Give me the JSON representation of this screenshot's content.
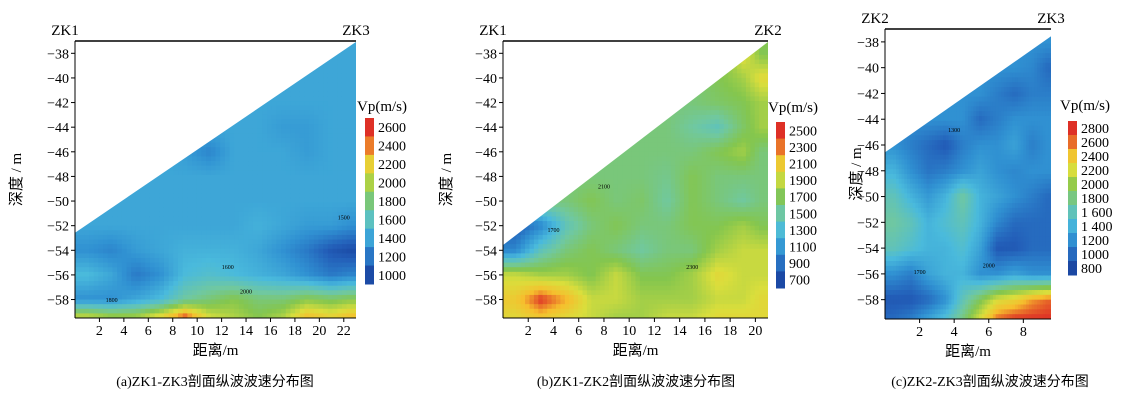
{
  "charts": [
    {
      "id": "a",
      "label_left": "ZK1",
      "label_right": "ZK3",
      "caption": "(a)ZK1-ZK3剖面纵波波速分布图",
      "ylabel": "深度 / m",
      "xlabel": "距离/m",
      "legend_title": "Vp(m/s)",
      "colorbar_ticks": [
        "2600",
        "2400",
        "2200",
        "2000",
        "1800",
        "1600",
        "1400",
        "1200",
        "1000"
      ]
    },
    {
      "id": "b",
      "label_left": "ZK1",
      "label_right": "ZK2",
      "caption": "(b)ZK1-ZK2剖面纵波波速分布图",
      "ylabel": "深度 / m",
      "xlabel": "距离/m",
      "legend_title": "Vp(m/s)",
      "colorbar_ticks": [
        "2500",
        "2300",
        "2100",
        "1900",
        "1700",
        "1500",
        "1300",
        "1100",
        "900",
        "700"
      ]
    },
    {
      "id": "c",
      "label_left": "ZK2",
      "label_right": "ZK3",
      "caption": "(c)ZK2-ZK3剖面纵波波速分布图",
      "ylabel": "深度 / m",
      "xlabel": "距离/m",
      "legend_title": "Vp(m/s)",
      "colorbar_ticks": [
        "2800",
        "2600",
        "2400",
        "2200",
        "2000",
        "1800",
        "1 600",
        "1 400",
        "1200",
        "1000",
        "800"
      ]
    }
  ],
  "chart_data": [
    {
      "type": "heatmap",
      "title": "(a)ZK1-ZK3剖面纵波波速分布图",
      "xlabel": "距离/m",
      "ylabel": "深度 / m",
      "xlim": [
        0,
        23
      ],
      "ylim": [
        -59.5,
        -37
      ],
      "x_ticks": [
        2,
        4,
        6,
        8,
        10,
        12,
        14,
        16,
        18,
        20,
        22
      ],
      "y_ticks": [
        -38,
        -40,
        -42,
        -44,
        -46,
        -48,
        -50,
        -52,
        -54,
        -56,
        -58
      ],
      "colorbar": {
        "title": "Vp(m/s)",
        "min": 1000,
        "max": 2600,
        "step": 200
      },
      "top_boundary": {
        "x": [
          0,
          23
        ],
        "y": [
          -52.5,
          -37
        ]
      },
      "rows_depth": [
        -38,
        -40,
        -42,
        -44,
        -46,
        -48,
        -50,
        -52,
        -54,
        -56,
        -58,
        -59.5
      ],
      "cols_x": [
        1,
        3,
        5,
        7,
        9,
        11,
        13,
        15,
        17,
        19,
        21,
        22.5
      ],
      "values": [
        [
          1500,
          1500,
          1500,
          1500,
          1500,
          1500,
          1500,
          1500,
          1500,
          1500,
          1500,
          1500
        ],
        [
          1500,
          1500,
          1500,
          1500,
          1500,
          1500,
          1500,
          1500,
          1500,
          1500,
          1500,
          1500
        ],
        [
          1500,
          1500,
          1500,
          1500,
          1500,
          1500,
          1500,
          1500,
          1500,
          1500,
          1500,
          1500
        ],
        [
          1500,
          1500,
          1500,
          1500,
          1500,
          1500,
          1500,
          1500,
          1450,
          1450,
          1500,
          1500
        ],
        [
          1400,
          1400,
          1500,
          1500,
          1450,
          1350,
          1500,
          1500,
          1500,
          1450,
          1500,
          1500
        ],
        [
          1500,
          1500,
          1500,
          1500,
          1500,
          1500,
          1500,
          1500,
          1500,
          1500,
          1500,
          1500
        ],
        [
          1500,
          1500,
          1500,
          1500,
          1500,
          1500,
          1500,
          1500,
          1500,
          1500,
          1500,
          1500
        ],
        [
          1500,
          1500,
          1500,
          1500,
          1500,
          1500,
          1500,
          1550,
          1500,
          1450,
          1450,
          1400
        ],
        [
          1400,
          1350,
          1450,
          1500,
          1550,
          1550,
          1550,
          1500,
          1400,
          1300,
          1150,
          1100
        ],
        [
          1600,
          1500,
          1300,
          1400,
          1600,
          1650,
          1600,
          1550,
          1500,
          1400,
          1300,
          1350
        ],
        [
          1400,
          1400,
          1500,
          1600,
          1800,
          1900,
          2000,
          1900,
          1900,
          2000,
          1950,
          2000
        ],
        [
          2200,
          2100,
          2100,
          2300,
          2600,
          2200,
          2100,
          2000,
          2100,
          2400,
          2300,
          2400
        ]
      ],
      "contour_labels": [
        "1500",
        "1600",
        "1800",
        "2000"
      ]
    },
    {
      "type": "heatmap",
      "title": "(b)ZK1-ZK2剖面纵波波速分布图",
      "xlabel": "距离/m",
      "ylabel": "深度 / m",
      "xlim": [
        0,
        21
      ],
      "ylim": [
        -59.5,
        -37
      ],
      "x_ticks": [
        2,
        4,
        6,
        8,
        10,
        12,
        14,
        16,
        18,
        20
      ],
      "y_ticks": [
        -38,
        -40,
        -42,
        -44,
        -46,
        -48,
        -50,
        -52,
        -54,
        -56,
        -58
      ],
      "colorbar": {
        "title": "Vp(m/s)",
        "min": 700,
        "max": 2500,
        "step": 200
      },
      "top_boundary": {
        "x": [
          0,
          21
        ],
        "y": [
          -53.5,
          -37
        ]
      },
      "rows_depth": [
        -38,
        -40,
        -42,
        -44,
        -46,
        -48,
        -50,
        -52,
        -54,
        -56,
        -58,
        -59.5
      ],
      "cols_x": [
        1,
        3,
        5,
        7,
        9,
        11,
        13,
        15,
        17,
        19,
        20.5
      ],
      "values": [
        [
          1700,
          1700,
          1700,
          1700,
          1700,
          1700,
          1700,
          1700,
          1700,
          2100,
          1800
        ],
        [
          1700,
          1700,
          1700,
          1700,
          1700,
          1700,
          1700,
          1700,
          1800,
          1900,
          2100
        ],
        [
          1700,
          1700,
          1700,
          1700,
          1700,
          1700,
          1700,
          1700,
          1750,
          1800,
          1900
        ],
        [
          1700,
          1700,
          1700,
          1700,
          1700,
          1700,
          1700,
          1600,
          1500,
          1750,
          1900
        ],
        [
          1700,
          1700,
          1700,
          1700,
          1700,
          1700,
          1700,
          1700,
          1800,
          1900,
          1700
        ],
        [
          1700,
          1700,
          1700,
          1700,
          1700,
          1700,
          1650,
          1800,
          1700,
          1700,
          1700
        ],
        [
          1700,
          1700,
          1700,
          1800,
          1700,
          1750,
          1600,
          1800,
          1700,
          1600,
          1700
        ],
        [
          900,
          1100,
          1500,
          1700,
          1800,
          1700,
          1700,
          1800,
          1800,
          1900,
          1800
        ],
        [
          1100,
          1500,
          1700,
          1800,
          1700,
          1600,
          1700,
          1700,
          1900,
          2000,
          2000
        ],
        [
          2000,
          1900,
          1900,
          1800,
          2000,
          1800,
          1800,
          1900,
          2100,
          2000,
          2000
        ],
        [
          2200,
          2500,
          2300,
          2000,
          2000,
          1900,
          1900,
          1900,
          2000,
          2000,
          2100
        ],
        [
          2100,
          2200,
          2100,
          2000,
          1900,
          1900,
          2000,
          2000,
          2100,
          2100,
          2100
        ]
      ],
      "contour_labels": [
        "1700",
        "2100",
        "2300"
      ]
    },
    {
      "type": "heatmap",
      "title": "(c)ZK2-ZK3剖面纵波波速分布图",
      "xlabel": "距离/m",
      "ylabel": "深度 / m",
      "xlim": [
        0,
        9.6
      ],
      "ylim": [
        -59.5,
        -37
      ],
      "x_ticks": [
        2,
        4,
        6,
        8
      ],
      "y_ticks": [
        -38,
        -40,
        -42,
        -44,
        -46,
        -48,
        -50,
        -52,
        -54,
        -56,
        -58
      ],
      "colorbar": {
        "title": "Vp(m/s)",
        "min": 800,
        "max": 2800,
        "step": 200
      },
      "top_boundary": {
        "x": [
          0,
          9.6
        ],
        "y": [
          -46.5,
          -37.5
        ]
      },
      "rows_depth": [
        -38,
        -40,
        -42,
        -44,
        -46,
        -48,
        -50,
        -52,
        -54,
        -56,
        -58,
        -59.5
      ],
      "cols_x": [
        0.5,
        1.5,
        2.5,
        3.5,
        4.5,
        5.5,
        6.5,
        7.5,
        8.5,
        9.4
      ],
      "values": [
        [
          1300,
          1300,
          1300,
          1300,
          1300,
          1300,
          1300,
          1300,
          1300,
          1300
        ],
        [
          1300,
          1300,
          1300,
          1300,
          1300,
          1300,
          1300,
          1300,
          1250,
          1100
        ],
        [
          1300,
          1300,
          1300,
          1300,
          1300,
          1300,
          1200,
          1100,
          1200,
          1200
        ],
        [
          1300,
          1300,
          1300,
          1300,
          1300,
          1100,
          1200,
          1300,
          1300,
          1300
        ],
        [
          1300,
          1200,
          1100,
          1000,
          1200,
          1300,
          1300,
          1400,
          1200,
          1300
        ],
        [
          1500,
          1300,
          1150,
          1200,
          1300,
          1400,
          1300,
          1250,
          1300,
          1300
        ],
        [
          1700,
          1500,
          1350,
          1500,
          1800,
          1500,
          1400,
          1300,
          1200,
          1100
        ],
        [
          1800,
          1700,
          1500,
          1600,
          1700,
          1500,
          1250,
          1100,
          1100,
          1100
        ],
        [
          1700,
          1600,
          1500,
          1500,
          1600,
          1400,
          1000,
          1000,
          1100,
          1100
        ],
        [
          1300,
          1200,
          1400,
          1500,
          1500,
          1300,
          1300,
          1400,
          1300,
          1300
        ],
        [
          1000,
          1000,
          1100,
          1300,
          1700,
          2000,
          2300,
          2400,
          2600,
          2700
        ],
        [
          1100,
          1200,
          1400,
          1600,
          1900,
          2300,
          2700,
          2800,
          2800,
          2800
        ]
      ],
      "contour_labels": [
        "1300",
        "1700",
        "2000"
      ]
    }
  ]
}
